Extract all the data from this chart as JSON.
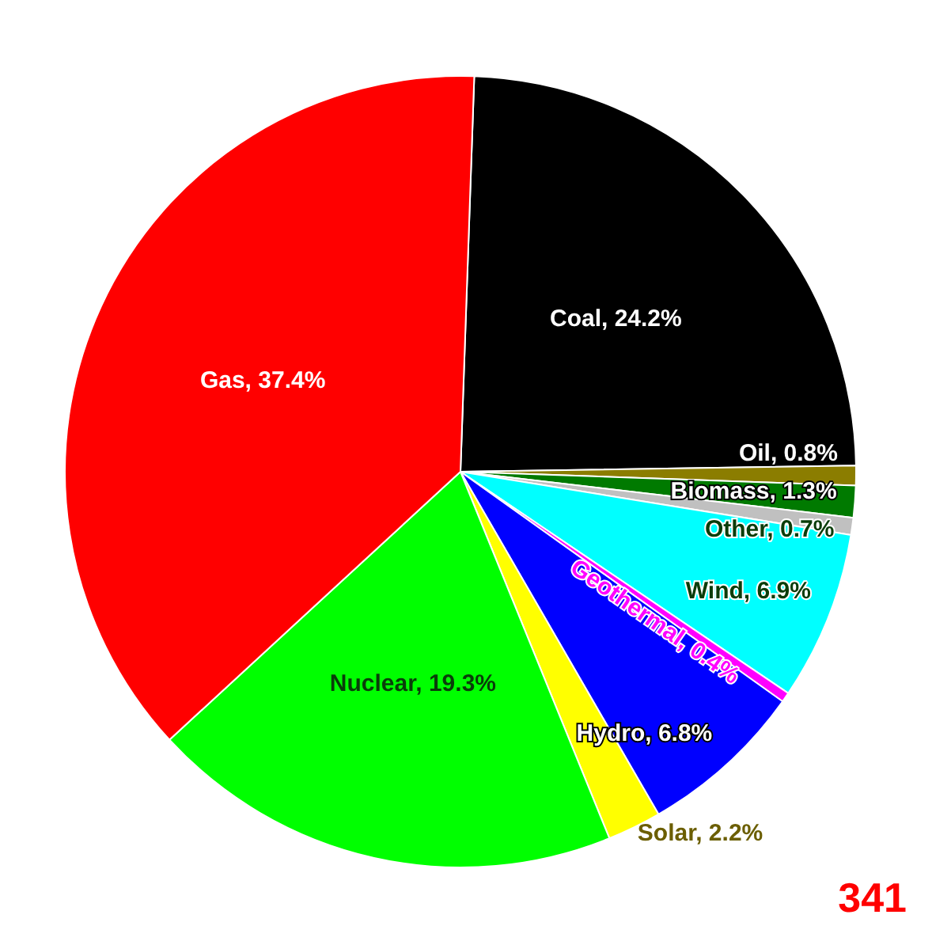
{
  "chart_data": {
    "type": "pie",
    "categories": [
      "Coal",
      "Oil",
      "Biomass",
      "Other",
      "Wind",
      "Geothermal",
      "Hydro",
      "Solar",
      "Nuclear",
      "Gas"
    ],
    "values": [
      24.2,
      0.8,
      1.3,
      0.7,
      6.9,
      0.4,
      6.8,
      2.2,
      19.3,
      37.4
    ],
    "colors": [
      "#000000",
      "#8b7d00",
      "#007a00",
      "#c0c0c0",
      "#00ffff",
      "#ff00ff",
      "#0000ff",
      "#ffff00",
      "#00ff00",
      "#ff0000"
    ],
    "value_labels": [
      "24.2%",
      "0.8%",
      "1.3%",
      "0.7%",
      "6.9%",
      "0.4%",
      "6.8%",
      "2.2%",
      "19.3%",
      "37.4%"
    ],
    "annotations": [
      "341"
    ]
  }
}
